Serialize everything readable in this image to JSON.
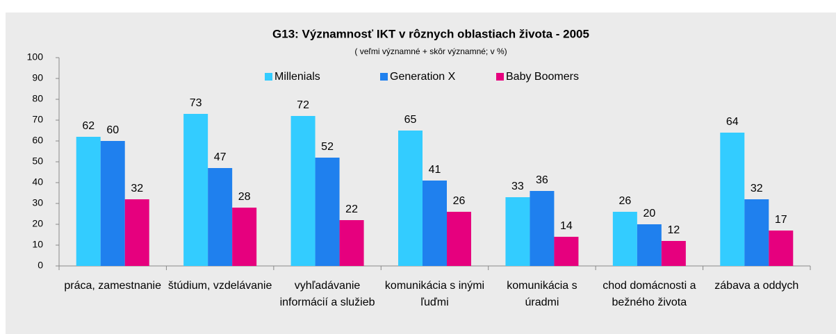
{
  "chart_data": {
    "type": "bar",
    "title": "G13: Významnosť IKT v rôznych oblastiach života - 2005",
    "subtitle": "( veľmi významné + skôr významné; v %)",
    "categories": [
      "práca, zamestnanie",
      "štúdium, vzdelávanie",
      "vyhľadávanie informácií a služieb",
      "komunikácia s inými ľuďmi",
      "komunikácia s úradmi",
      "chod domácnosti a bežného života",
      "zábava a oddych"
    ],
    "series": [
      {
        "name": "Millenials",
        "color": "#33ccff",
        "values": [
          62,
          73,
          72,
          65,
          33,
          26,
          64
        ]
      },
      {
        "name": "Generation X",
        "color": "#1f80ee",
        "values": [
          60,
          47,
          52,
          41,
          36,
          20,
          32
        ]
      },
      {
        "name": "Baby Boomers",
        "color": "#e6007e",
        "values": [
          32,
          28,
          22,
          26,
          14,
          12,
          17
        ]
      }
    ],
    "ylim": [
      0,
      100
    ],
    "yticks": [
      0,
      10,
      20,
      30,
      40,
      50,
      60,
      70,
      80,
      90,
      100
    ],
    "legend": "top"
  }
}
